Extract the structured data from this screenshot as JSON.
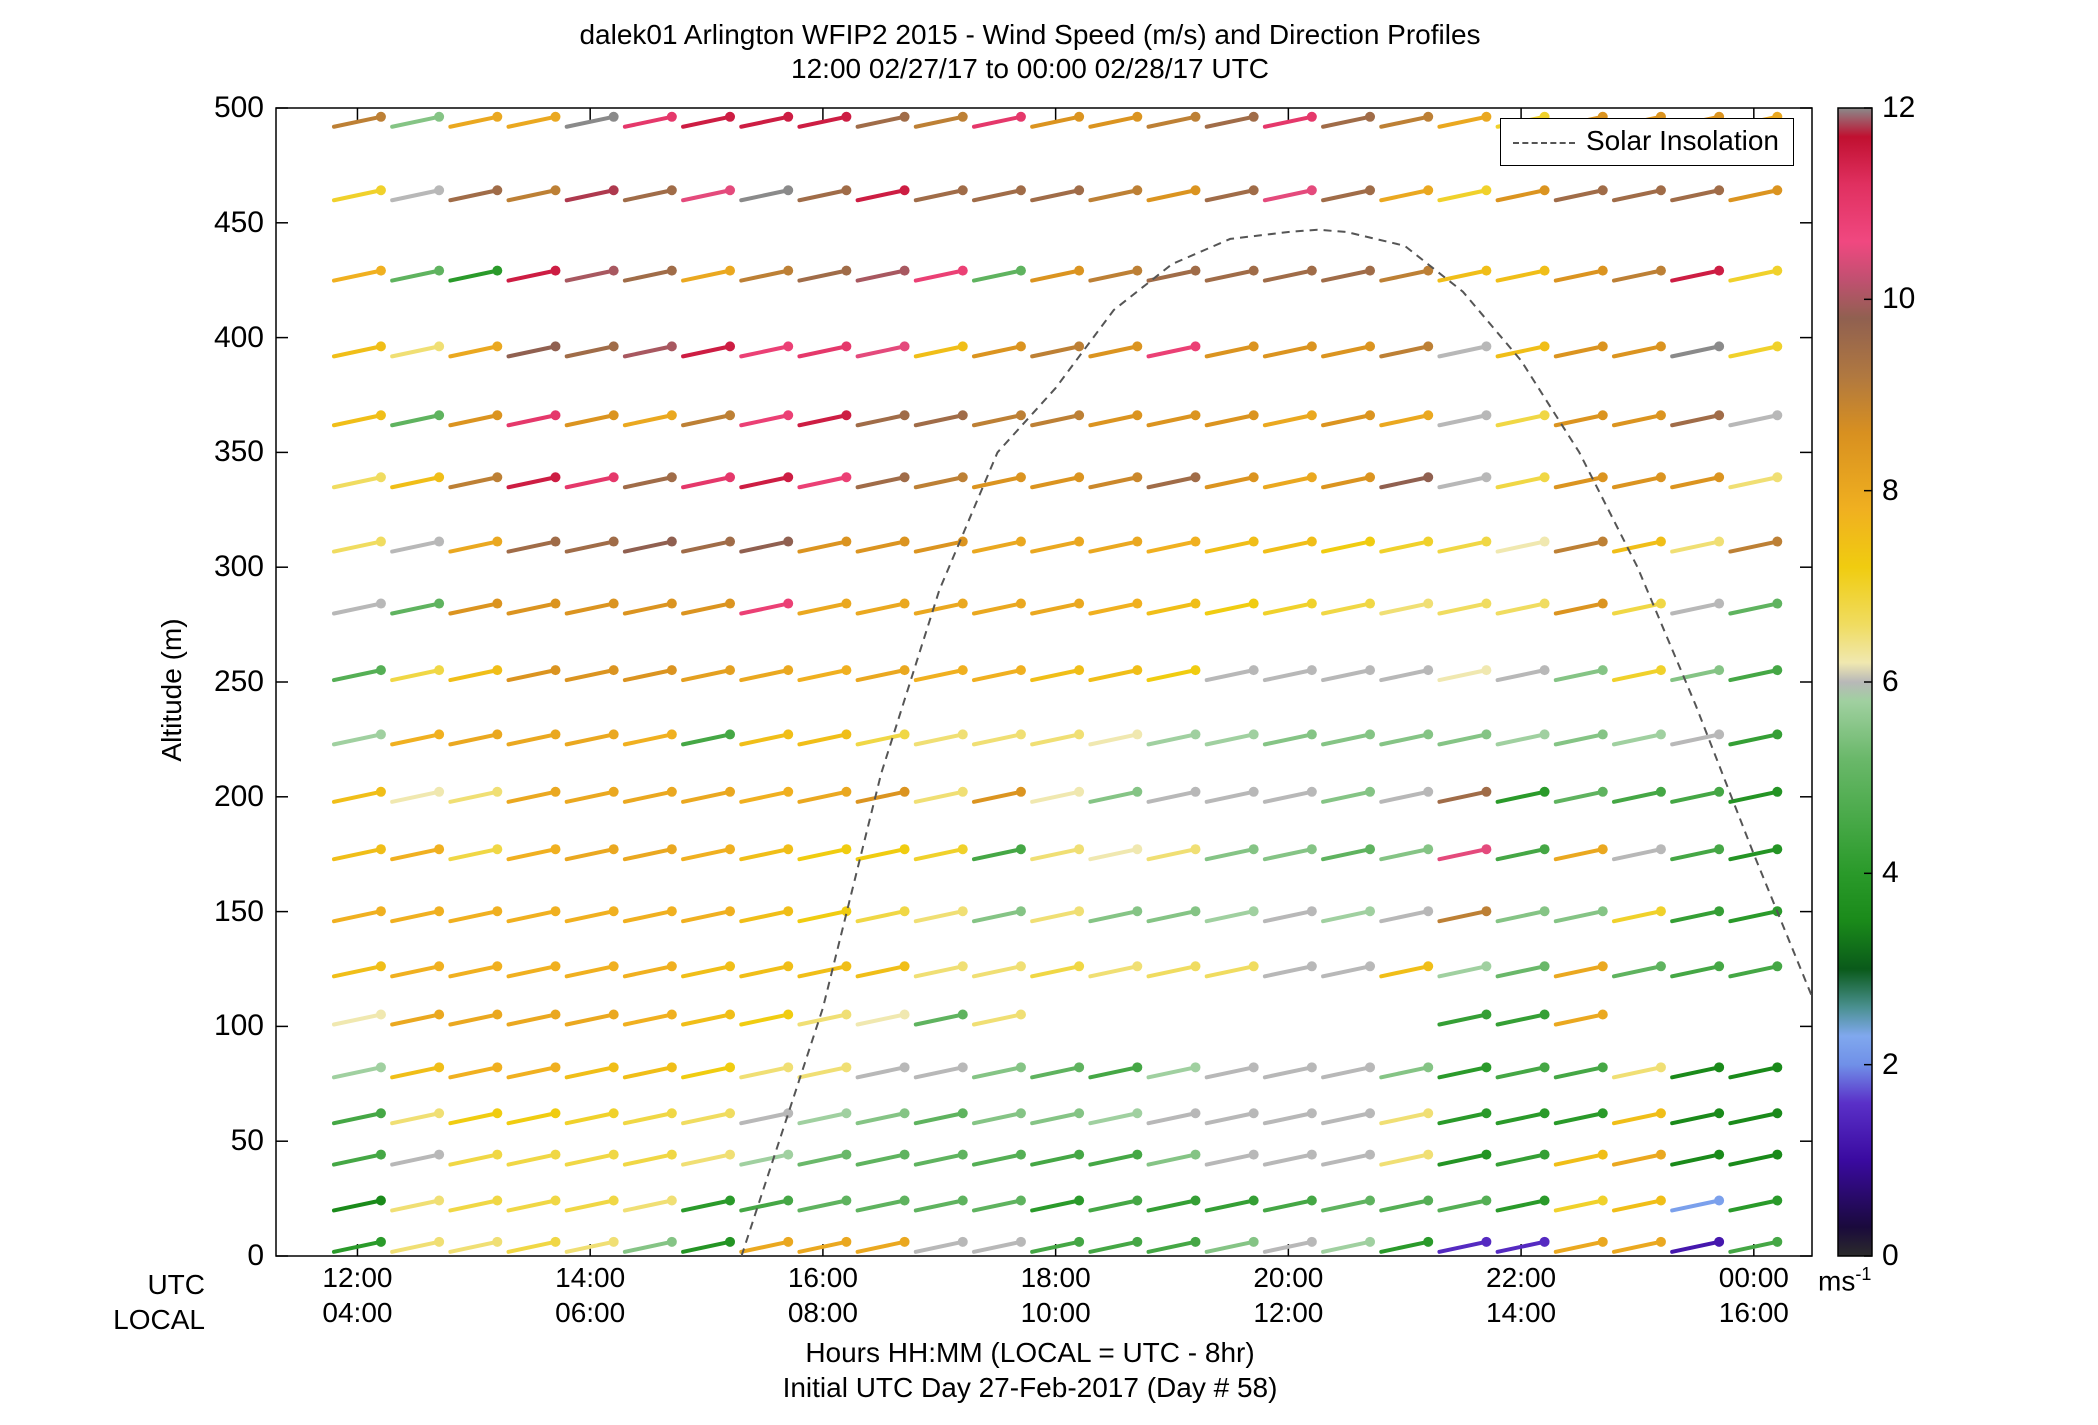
{
  "title_line1": "dalek01 Arlington WFIP2 2015 - Wind Speed (m/s) and Direction Profiles",
  "title_line2": "12:00 02/27/17 to 00:00 02/28/17  UTC",
  "row_label_utc": "UTC",
  "row_label_local": "LOCAL",
  "xlabel_line1": "Hours HH:MM  (LOCAL = UTC - 8hr)",
  "xlabel_line2": "Initial UTC Day 27-Feb-2017 (Day # 58)",
  "ylabel": "Altitude (m)",
  "legend_label": "Solar Insolation",
  "colorbar_units_base": "ms",
  "colorbar_units_exp": "-1",
  "x_ticks_utc": [
    "12:00",
    "14:00",
    "16:00",
    "18:00",
    "20:00",
    "22:00",
    "00:00"
  ],
  "x_ticks_local": [
    "04:00",
    "06:00",
    "08:00",
    "10:00",
    "12:00",
    "14:00",
    "16:00"
  ],
  "y_ticks": [
    "0",
    "50",
    "100",
    "150",
    "200",
    "250",
    "300",
    "350",
    "400",
    "450",
    "500"
  ],
  "colorbar_ticks": [
    "0",
    "2",
    "4",
    "6",
    "8",
    "10",
    "12"
  ],
  "colors": {
    "wind_speed_scale": [
      [
        0.0,
        "#2b2b2b"
      ],
      [
        0.3,
        "#1a0a3c"
      ],
      [
        1.0,
        "#3a0aa0"
      ],
      [
        1.6,
        "#5a30c8"
      ],
      [
        2.0,
        "#7090e8"
      ],
      [
        2.3,
        "#80a8ee"
      ],
      [
        2.6,
        "#4a9090"
      ],
      [
        3.0,
        "#0a5a1a"
      ],
      [
        3.5,
        "#1a8a1a"
      ],
      [
        4.0,
        "#2a9a2a"
      ],
      [
        4.6,
        "#4aaa4a"
      ],
      [
        5.2,
        "#6ab86a"
      ],
      [
        5.8,
        "#a0d0a0"
      ],
      [
        6.0,
        "#b8b8b8"
      ],
      [
        6.2,
        "#f0e8b0"
      ],
      [
        6.6,
        "#f0dc60"
      ],
      [
        7.2,
        "#f0cc10"
      ],
      [
        7.8,
        "#f0b020"
      ],
      [
        8.6,
        "#d89020"
      ],
      [
        9.2,
        "#b07840"
      ],
      [
        9.8,
        "#906050"
      ],
      [
        10.2,
        "#c05070"
      ],
      [
        10.6,
        "#f04880"
      ],
      [
        11.2,
        "#e03060"
      ],
      [
        11.7,
        "#c01030"
      ],
      [
        12.0,
        "#8a8a8a"
      ]
    ],
    "solar_curve": "#555555"
  },
  "chart_data": {
    "type": "wind_barb_profile",
    "title": "dalek01 Arlington WFIP2 2015 - Wind Speed (m/s) and Direction Profiles",
    "subtitle": "12:00 02/27/17 to 00:00 02/28/17  UTC",
    "xlabel": "Hours HH:MM  (LOCAL = UTC - 8hr)",
    "ylabel": "Altitude (m)",
    "x_unit": "hours UTC",
    "xlim": [
      11.3,
      24.5
    ],
    "ylim": [
      0,
      500
    ],
    "x_ticks_utc_hours": [
      12,
      14,
      16,
      18,
      20,
      22,
      24
    ],
    "colorbar": {
      "label": "ms-1",
      "range": [
        0,
        12
      ]
    },
    "altitudes_m": [
      4,
      22,
      42,
      60,
      80,
      103,
      124,
      148,
      175,
      200,
      225,
      253,
      282,
      309,
      337,
      364,
      394,
      427,
      462,
      494
    ],
    "times_utc_hours": [
      12.0,
      12.5,
      13.0,
      13.5,
      14.0,
      14.5,
      15.0,
      15.5,
      16.0,
      16.5,
      17.0,
      17.5,
      18.0,
      18.5,
      19.0,
      19.5,
      20.0,
      20.5,
      21.0,
      21.5,
      22.0,
      22.5,
      23.0,
      23.5,
      24.0
    ],
    "series": [
      {
        "altitude_m": 4,
        "speed_ms": [
          4.0,
          6.5,
          6.5,
          6.8,
          6.5,
          5.5,
          3.8,
          8.0,
          8.0,
          8.0,
          6.0,
          6.0,
          4.5,
          4.5,
          4.5,
          5.5,
          6.0,
          5.8,
          4.0,
          1.5,
          1.5,
          8.0,
          8.0,
          1.2,
          4.5
        ]
      },
      {
        "altitude_m": 22,
        "speed_ms": [
          3.5,
          6.5,
          6.8,
          6.8,
          6.8,
          6.5,
          4.0,
          4.5,
          5.0,
          5.0,
          5.0,
          5.0,
          4.0,
          4.5,
          4.2,
          4.2,
          4.5,
          5.0,
          4.8,
          4.8,
          4.0,
          7.0,
          7.5,
          2.2,
          4.0
        ]
      },
      {
        "altitude_m": 42,
        "speed_ms": [
          4.5,
          6.0,
          6.8,
          6.8,
          6.8,
          6.8,
          6.5,
          5.8,
          5.2,
          5.0,
          5.0,
          4.8,
          4.5,
          4.5,
          5.5,
          6.0,
          6.0,
          6.0,
          6.5,
          3.8,
          4.2,
          7.5,
          8.0,
          3.5,
          3.5
        ]
      },
      {
        "altitude_m": 60,
        "speed_ms": [
          4.5,
          6.5,
          7.2,
          7.2,
          7.0,
          6.8,
          6.6,
          6.0,
          5.8,
          5.5,
          5.0,
          5.5,
          5.5,
          5.8,
          6.0,
          6.0,
          6.0,
          6.0,
          6.5,
          4.0,
          4.0,
          4.0,
          7.5,
          3.5,
          3.5
        ]
      },
      {
        "altitude_m": 80,
        "speed_ms": [
          5.8,
          7.5,
          7.8,
          7.8,
          7.5,
          7.5,
          7.2,
          6.5,
          6.5,
          6.0,
          6.0,
          5.5,
          5.0,
          4.5,
          5.8,
          6.0,
          6.0,
          6.0,
          5.5,
          4.0,
          4.5,
          4.5,
          6.5,
          3.5,
          3.5
        ]
      },
      {
        "altitude_m": 103,
        "speed_ms": [
          6.2,
          8.0,
          8.0,
          8.0,
          8.0,
          7.8,
          7.5,
          7.2,
          6.5,
          6.2,
          5.0,
          6.5,
          null,
          null,
          null,
          null,
          null,
          null,
          null,
          4.2,
          4.2,
          8.0,
          null,
          null,
          null
        ]
      },
      {
        "altitude_m": 124,
        "speed_ms": [
          7.5,
          7.8,
          7.8,
          7.8,
          7.8,
          7.8,
          7.5,
          7.5,
          7.5,
          7.5,
          6.5,
          6.5,
          6.8,
          6.5,
          6.6,
          6.6,
          6.0,
          6.0,
          7.5,
          5.8,
          5.2,
          8.0,
          5.0,
          4.5,
          4.5
        ]
      },
      {
        "altitude_m": 148,
        "speed_ms": [
          7.8,
          7.8,
          7.8,
          7.8,
          7.8,
          7.8,
          7.8,
          7.5,
          7.2,
          6.8,
          6.5,
          5.5,
          6.5,
          5.5,
          5.5,
          5.8,
          6.0,
          5.8,
          6.0,
          9.0,
          5.5,
          5.5,
          7.0,
          4.2,
          4.0
        ]
      },
      {
        "altitude_m": 175,
        "speed_ms": [
          7.5,
          7.8,
          6.8,
          7.8,
          8.0,
          8.0,
          7.8,
          7.5,
          7.2,
          7.2,
          7.0,
          4.5,
          6.5,
          6.2,
          6.5,
          5.5,
          5.5,
          5.0,
          5.5,
          10.5,
          4.5,
          8.0,
          6.0,
          4.5,
          3.8
        ]
      },
      {
        "altitude_m": 200,
        "speed_ms": [
          7.5,
          6.2,
          6.5,
          8.0,
          8.0,
          8.0,
          8.0,
          7.8,
          8.0,
          8.5,
          6.5,
          8.5,
          6.2,
          5.5,
          6.0,
          6.0,
          6.0,
          5.5,
          6.0,
          9.5,
          4.0,
          5.0,
          4.5,
          4.5,
          3.8
        ]
      },
      {
        "altitude_m": 225,
        "speed_ms": [
          5.8,
          7.8,
          8.0,
          8.0,
          8.0,
          7.8,
          4.5,
          7.5,
          7.5,
          6.8,
          6.5,
          6.5,
          6.5,
          6.2,
          5.8,
          5.8,
          5.5,
          5.5,
          5.5,
          5.5,
          5.8,
          5.5,
          5.8,
          6.0,
          4.2
        ]
      },
      {
        "altitude_m": 253,
        "speed_ms": [
          4.8,
          6.8,
          7.5,
          8.5,
          8.5,
          8.5,
          8.2,
          8.0,
          7.8,
          8.0,
          7.8,
          7.8,
          7.5,
          7.5,
          7.2,
          6.0,
          6.0,
          6.0,
          6.0,
          6.2,
          6.0,
          5.5,
          7.0,
          5.5,
          4.5
        ]
      },
      {
        "altitude_m": 282,
        "speed_ms": [
          6.0,
          5.0,
          8.5,
          8.5,
          8.5,
          8.5,
          8.5,
          10.8,
          8.0,
          8.0,
          8.0,
          8.0,
          8.0,
          7.8,
          7.5,
          7.2,
          7.0,
          6.8,
          6.5,
          6.6,
          6.6,
          8.5,
          6.8,
          6.0,
          5.0
        ]
      },
      {
        "altitude_m": 309,
        "speed_ms": [
          6.6,
          6.0,
          8.0,
          9.5,
          9.5,
          9.8,
          9.5,
          9.8,
          8.5,
          8.5,
          8.5,
          8.0,
          8.0,
          8.0,
          7.8,
          7.5,
          7.5,
          7.2,
          7.0,
          6.8,
          6.2,
          9.0,
          7.5,
          6.5,
          9.0
        ]
      },
      {
        "altitude_m": 337,
        "speed_ms": [
          6.6,
          7.5,
          9.0,
          11.5,
          11.0,
          9.5,
          11.0,
          11.5,
          10.8,
          9.5,
          9.0,
          8.5,
          8.5,
          8.8,
          9.5,
          8.5,
          8.0,
          8.5,
          9.8,
          6.0,
          6.8,
          8.5,
          8.5,
          8.5,
          6.5
        ]
      },
      {
        "altitude_m": 364,
        "speed_ms": [
          7.5,
          5.0,
          8.5,
          11.0,
          8.5,
          8.0,
          9.0,
          10.8,
          11.5,
          9.5,
          9.5,
          9.0,
          9.0,
          8.5,
          8.5,
          8.5,
          8.0,
          8.5,
          8.0,
          6.0,
          6.8,
          8.5,
          8.5,
          9.5,
          6.0
        ]
      },
      {
        "altitude_m": 394,
        "speed_ms": [
          7.5,
          6.5,
          8.0,
          9.8,
          9.5,
          10.0,
          11.5,
          10.8,
          11.0,
          10.5,
          7.5,
          8.5,
          9.0,
          8.5,
          10.8,
          8.5,
          8.5,
          8.5,
          9.0,
          6.0,
          7.5,
          8.5,
          8.5,
          12.0,
          7.0
        ]
      },
      {
        "altitude_m": 427,
        "speed_ms": [
          7.8,
          5.0,
          4.0,
          11.5,
          10.0,
          9.5,
          8.0,
          9.0,
          9.5,
          10.0,
          10.8,
          5.0,
          8.5,
          9.0,
          9.5,
          9.5,
          9.5,
          9.5,
          9.0,
          7.5,
          7.5,
          8.5,
          9.0,
          11.5,
          7.0
        ]
      },
      {
        "altitude_m": 462,
        "speed_ms": [
          7.0,
          6.0,
          9.5,
          9.0,
          11.8,
          9.5,
          10.5,
          12.0,
          9.5,
          11.5,
          9.5,
          9.5,
          9.5,
          9.0,
          8.5,
          9.5,
          10.5,
          9.5,
          8.0,
          7.0,
          8.5,
          9.5,
          9.5,
          9.5,
          8.5
        ]
      },
      {
        "altitude_m": 494,
        "speed_ms": [
          9.0,
          5.5,
          8.0,
          8.0,
          12.0,
          11.0,
          11.5,
          11.5,
          11.5,
          9.5,
          9.0,
          11.0,
          8.5,
          8.5,
          9.0,
          9.5,
          11.0,
          9.5,
          9.0,
          8.0,
          7.0,
          8.5,
          8.5,
          8.5,
          8.0
        ]
      }
    ],
    "solar_insolation": {
      "name": "Solar Insolation",
      "style": "dashed",
      "x_utc_hours": [
        15.3,
        16.0,
        16.5,
        17.0,
        17.5,
        18.0,
        18.5,
        19.0,
        19.5,
        20.0,
        20.25,
        20.5,
        21.0,
        21.5,
        22.0,
        22.5,
        23.0,
        23.5,
        24.0,
        24.5
      ],
      "y_plot_units_m": [
        0,
        108,
        210,
        290,
        350,
        378,
        412,
        432,
        443,
        446,
        447,
        446,
        440,
        420,
        390,
        350,
        300,
        240,
        175,
        113
      ]
    }
  }
}
